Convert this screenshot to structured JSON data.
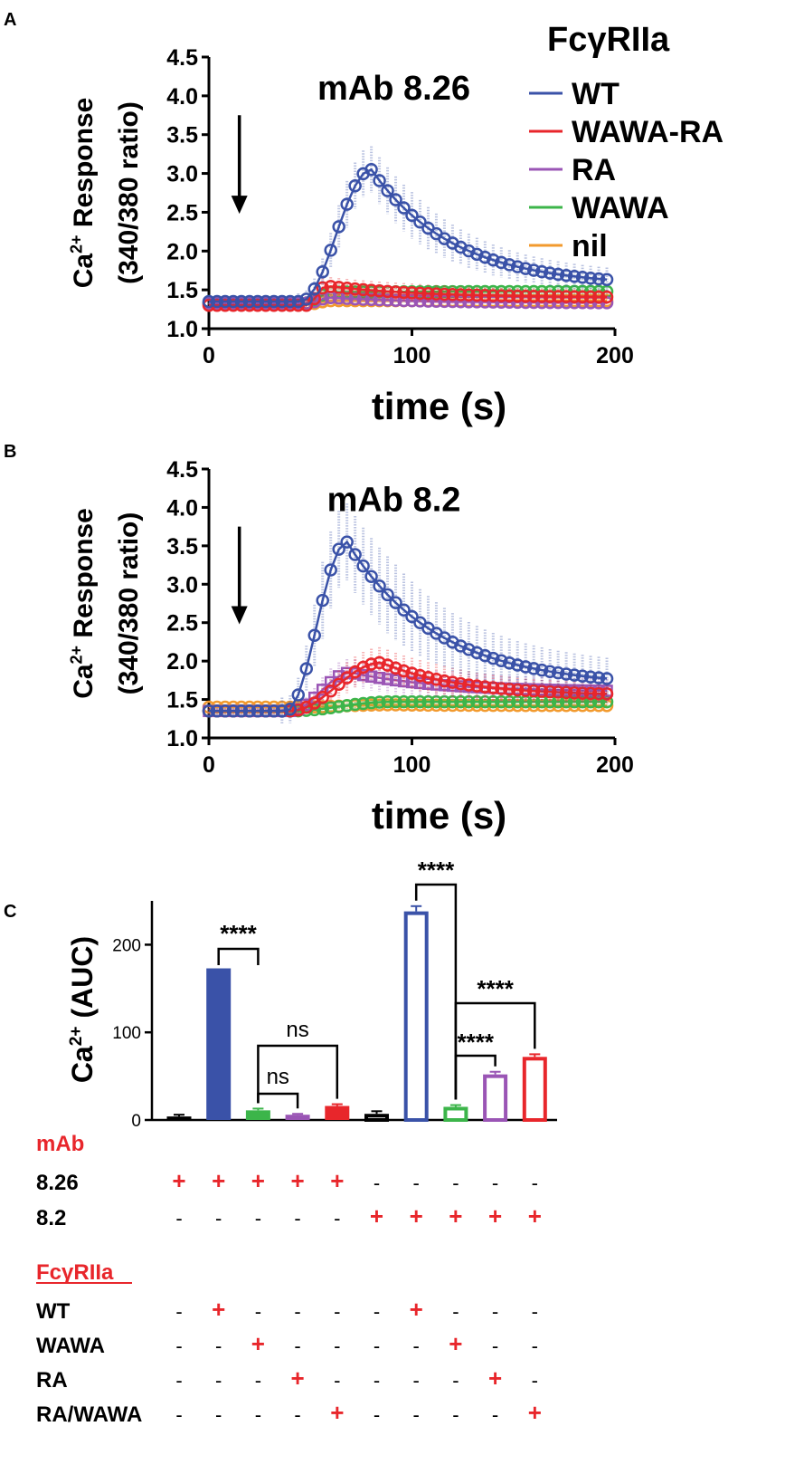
{
  "panel_labels": {
    "a": "A",
    "b": "B",
    "c": "C"
  },
  "legend": {
    "title": "FcγRIIa",
    "entries": [
      {
        "label": "WT",
        "color": "#3a52a8"
      },
      {
        "label": "WAWA-RA",
        "color": "#e8262b"
      },
      {
        "label": "RA",
        "color": "#9a55b5"
      },
      {
        "label": "WAWA",
        "color": "#3cb54a"
      },
      {
        "label": "nil",
        "color": "#f29a2e"
      }
    ]
  },
  "chart_data": [
    {
      "type": "line",
      "title": "mAb 8.26",
      "ylabel_line1": "Ca2+ Response",
      "ylabel_line2": "(340/380 ratio)",
      "ylabel_base": "Ca",
      "ylabel_sup": "2+",
      "ylabel_rest": " Response",
      "xlabel": "time (s)",
      "xlim": [
        0,
        200
      ],
      "ylim": [
        1.0,
        4.5
      ],
      "xticks": [
        "0",
        "100",
        "200"
      ],
      "yticks": [
        "1.0",
        "1.5",
        "2.0",
        "2.5",
        "3.0",
        "3.5",
        "4.0",
        "4.5"
      ],
      "stimulus_time": 15,
      "series": [
        {
          "name": "WT",
          "color": "#3a52a8",
          "baseline": 1.35,
          "start": 45,
          "peak": 3.05,
          "peak_time": 80,
          "tau": 12,
          "end": 1.55,
          "err": 0.3,
          "marker": "circle"
        },
        {
          "name": "WAWA-RA",
          "color": "#e8262b",
          "baseline": 1.3,
          "start": 48,
          "peak": 1.55,
          "peak_time": 58,
          "tau": 5,
          "end": 1.4,
          "err": 0.12,
          "marker": "circle"
        },
        {
          "name": "RA",
          "color": "#9a55b5",
          "baseline": 1.33,
          "start": 48,
          "peak": 1.4,
          "peak_time": 60,
          "tau": 5,
          "end": 1.33,
          "err": 0.04,
          "marker": "circle"
        },
        {
          "name": "WAWA",
          "color": "#3cb54a",
          "baseline": 1.33,
          "start": 48,
          "peak": 1.47,
          "peak_time": 60,
          "tau": 5,
          "end": 1.48,
          "err": 0.05,
          "marker": "circle"
        },
        {
          "name": "nil",
          "color": "#f29a2e",
          "baseline": 1.32,
          "start": 50,
          "peak": 1.36,
          "peak_time": 60,
          "tau": 5,
          "end": 1.36,
          "err": 0.03,
          "marker": "circle"
        }
      ]
    },
    {
      "type": "line",
      "title": "mAb 8.2",
      "ylabel_line1": "Ca2+ Response",
      "ylabel_line2": "(340/380 ratio)",
      "ylabel_base": "Ca",
      "ylabel_sup": "2+",
      "ylabel_rest": " Response",
      "xlabel": "time (s)",
      "xlim": [
        0,
        200
      ],
      "ylim": [
        1.0,
        4.5
      ],
      "xticks": [
        "0",
        "100",
        "200"
      ],
      "yticks": [
        "1.0",
        "1.5",
        "2.0",
        "2.5",
        "3.0",
        "3.5",
        "4.0",
        "4.5"
      ],
      "stimulus_time": 15,
      "series": [
        {
          "name": "WT",
          "color": "#3a52a8",
          "baseline": 1.35,
          "start": 38,
          "peak": 3.55,
          "peak_time": 68,
          "tau": 10,
          "end": 1.67,
          "err": 0.5,
          "marker": "circle"
        },
        {
          "name": "WAWA-RA",
          "color": "#e8262b",
          "baseline": 1.35,
          "start": 40,
          "peak": 1.98,
          "peak_time": 85,
          "tau": 12,
          "end": 1.55,
          "err": 0.2,
          "marker": "circle"
        },
        {
          "name": "RA",
          "color": "#9a55b5",
          "baseline": 1.35,
          "start": 40,
          "peak": 1.85,
          "peak_time": 70,
          "tau": 10,
          "end": 1.6,
          "err": 0.18,
          "marker": "square"
        },
        {
          "name": "WAWA",
          "color": "#3cb54a",
          "baseline": 1.35,
          "start": 40,
          "peak": 1.47,
          "peak_time": 90,
          "tau": 15,
          "end": 1.47,
          "err": 0.07,
          "marker": "circle"
        },
        {
          "name": "nil",
          "color": "#f29a2e",
          "baseline": 1.4,
          "start": 40,
          "peak": 1.43,
          "peak_time": 90,
          "tau": 15,
          "end": 1.42,
          "err": 0.05,
          "marker": "circle"
        }
      ]
    },
    {
      "type": "bar",
      "ylabel_base": "Ca",
      "ylabel_sup": "2+",
      "ylabel_rest": "  (AUC)",
      "ylim": [
        0,
        250
      ],
      "yticks": [
        "0",
        "100",
        "200"
      ],
      "bars": [
        {
          "value": 4,
          "err": 2,
          "color": "#000000",
          "filled": true
        },
        {
          "value": 173,
          "err": 0,
          "color": "#3a52a8",
          "filled": true
        },
        {
          "value": 11,
          "err": 2,
          "color": "#3cb54a",
          "filled": true
        },
        {
          "value": 6,
          "err": 1,
          "color": "#9a55b5",
          "filled": true
        },
        {
          "value": 16,
          "err": 2,
          "color": "#e8262b",
          "filled": true
        },
        {
          "value": 7,
          "err": 3,
          "color": "#000000",
          "filled": false
        },
        {
          "value": 238,
          "err": 6,
          "color": "#3a52a8",
          "filled": false
        },
        {
          "value": 15,
          "err": 2,
          "color": "#3cb54a",
          "filled": false
        },
        {
          "value": 52,
          "err": 3,
          "color": "#9a55b5",
          "filled": false
        },
        {
          "value": 72,
          "err": 3,
          "color": "#e8262b",
          "filled": false
        }
      ],
      "significance": [
        {
          "from": 1,
          "to": 2,
          "label": "****"
        },
        {
          "from": 2,
          "to": 4,
          "label": "ns"
        },
        {
          "from": 2,
          "to": 3,
          "label": "ns"
        },
        {
          "from": 6,
          "to": 7,
          "label": "****"
        },
        {
          "from": 7,
          "to": 9,
          "label": "****"
        },
        {
          "from": 7,
          "to": 8,
          "label": "****"
        }
      ],
      "table": {
        "header1": "mAb",
        "header2": "FcγRIIa",
        "rows_mab": [
          {
            "label": "8.26",
            "cells": [
              "+",
              "+",
              "+",
              "+",
              "+",
              "-",
              "-",
              "-",
              "-",
              "-"
            ]
          },
          {
            "label": "8.2",
            "cells": [
              "-",
              "-",
              "-",
              "-",
              "-",
              "+",
              "+",
              "+",
              "+",
              "+"
            ]
          }
        ],
        "rows_fc": [
          {
            "label": "WT",
            "cells": [
              "-",
              "+",
              "-",
              "-",
              "-",
              "-",
              "+",
              "-",
              "-",
              "-"
            ]
          },
          {
            "label": "WAWA",
            "cells": [
              "-",
              "-",
              "+",
              "-",
              "-",
              "-",
              "-",
              "+",
              "-",
              "-"
            ]
          },
          {
            "label": "RA",
            "cells": [
              "-",
              "-",
              "-",
              "+",
              "-",
              "-",
              "-",
              "-",
              "+",
              "-"
            ]
          },
          {
            "label": "RA/WAWA",
            "cells": [
              "-",
              "-",
              "-",
              "-",
              "+",
              "-",
              "-",
              "-",
              "-",
              "+"
            ]
          }
        ]
      }
    }
  ]
}
